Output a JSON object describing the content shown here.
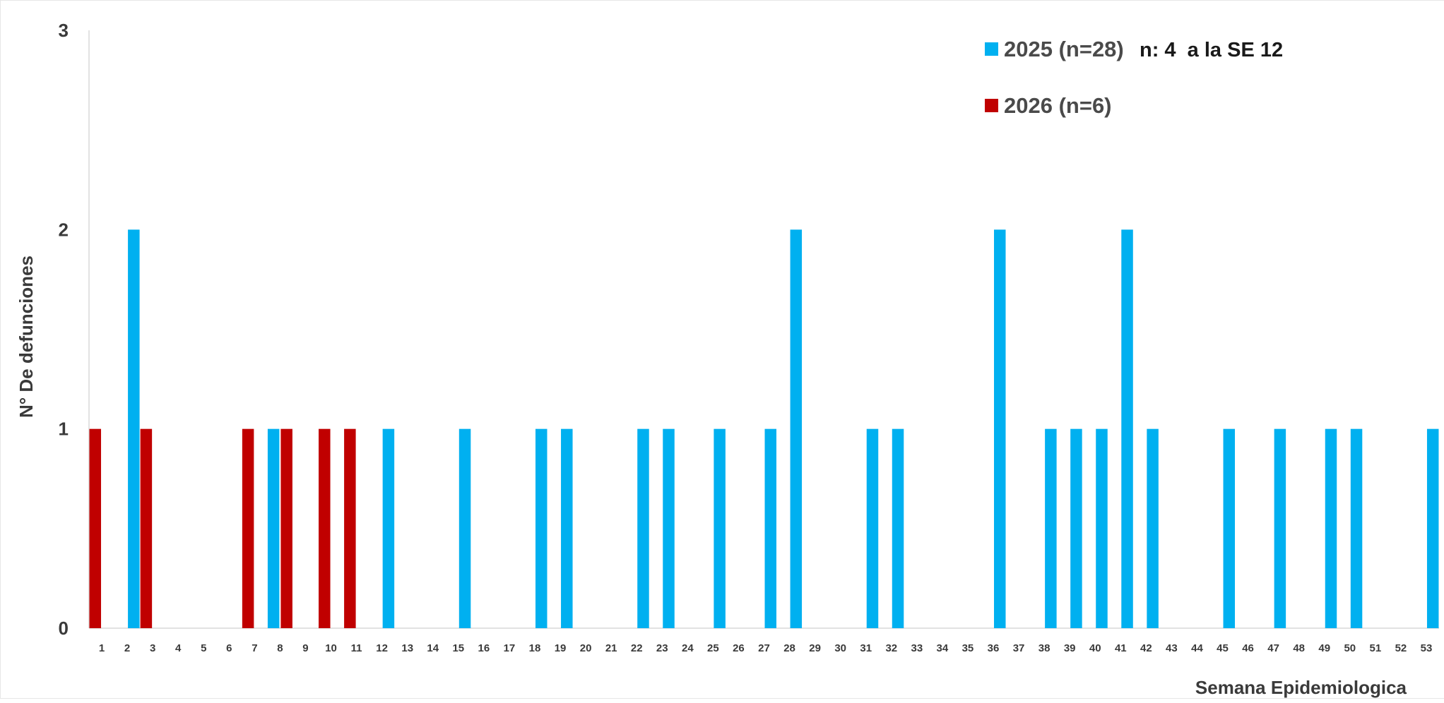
{
  "chart_data": {
    "type": "bar",
    "title": "",
    "xlabel": "Semana Epidemiologica",
    "ylabel": "N° De defunciones",
    "ylim": [
      0,
      3
    ],
    "yticks": [
      "0",
      "1",
      "2",
      "3"
    ],
    "grid": false,
    "legend_position": "top-right",
    "categories": [
      "1",
      "2",
      "3",
      "4",
      "5",
      "6",
      "7",
      "8",
      "9",
      "10",
      "11",
      "12",
      "13",
      "14",
      "15",
      "16",
      "17",
      "18",
      "19",
      "20",
      "21",
      "22",
      "23",
      "24",
      "25",
      "26",
      "27",
      "28",
      "29",
      "30",
      "31",
      "32",
      "33",
      "34",
      "35",
      "36",
      "37",
      "38",
      "39",
      "40",
      "41",
      "42",
      "43",
      "44",
      "45",
      "46",
      "47",
      "48",
      "49",
      "50",
      "51",
      "52",
      "53"
    ],
    "series": [
      {
        "name": "2025 (n=28)",
        "color": "#00B0F0",
        "values": [
          0,
          2,
          0,
          0,
          0,
          0,
          0,
          1,
          0,
          0,
          0,
          1,
          0,
          0,
          1,
          0,
          0,
          1,
          1,
          0,
          0,
          1,
          1,
          0,
          1,
          0,
          1,
          2,
          0,
          0,
          1,
          1,
          0,
          0,
          0,
          2,
          0,
          1,
          1,
          1,
          2,
          1,
          0,
          0,
          1,
          0,
          1,
          0,
          1,
          1,
          0,
          0,
          1
        ]
      },
      {
        "name": "2026 (n=6)",
        "color": "#C00000",
        "values": [
          1,
          0,
          1,
          0,
          0,
          0,
          1,
          1,
          0,
          1,
          1,
          0,
          0,
          0,
          0,
          0,
          0,
          0,
          0,
          0,
          0,
          0,
          0,
          0,
          0,
          0,
          0,
          0,
          0,
          0,
          0,
          0,
          0,
          0,
          0,
          0,
          0,
          0,
          0,
          0,
          0,
          0,
          0,
          0,
          0,
          0,
          0,
          0,
          0,
          0,
          0,
          0,
          0
        ]
      }
    ],
    "annotation": "n: 4  a la SE 12"
  }
}
